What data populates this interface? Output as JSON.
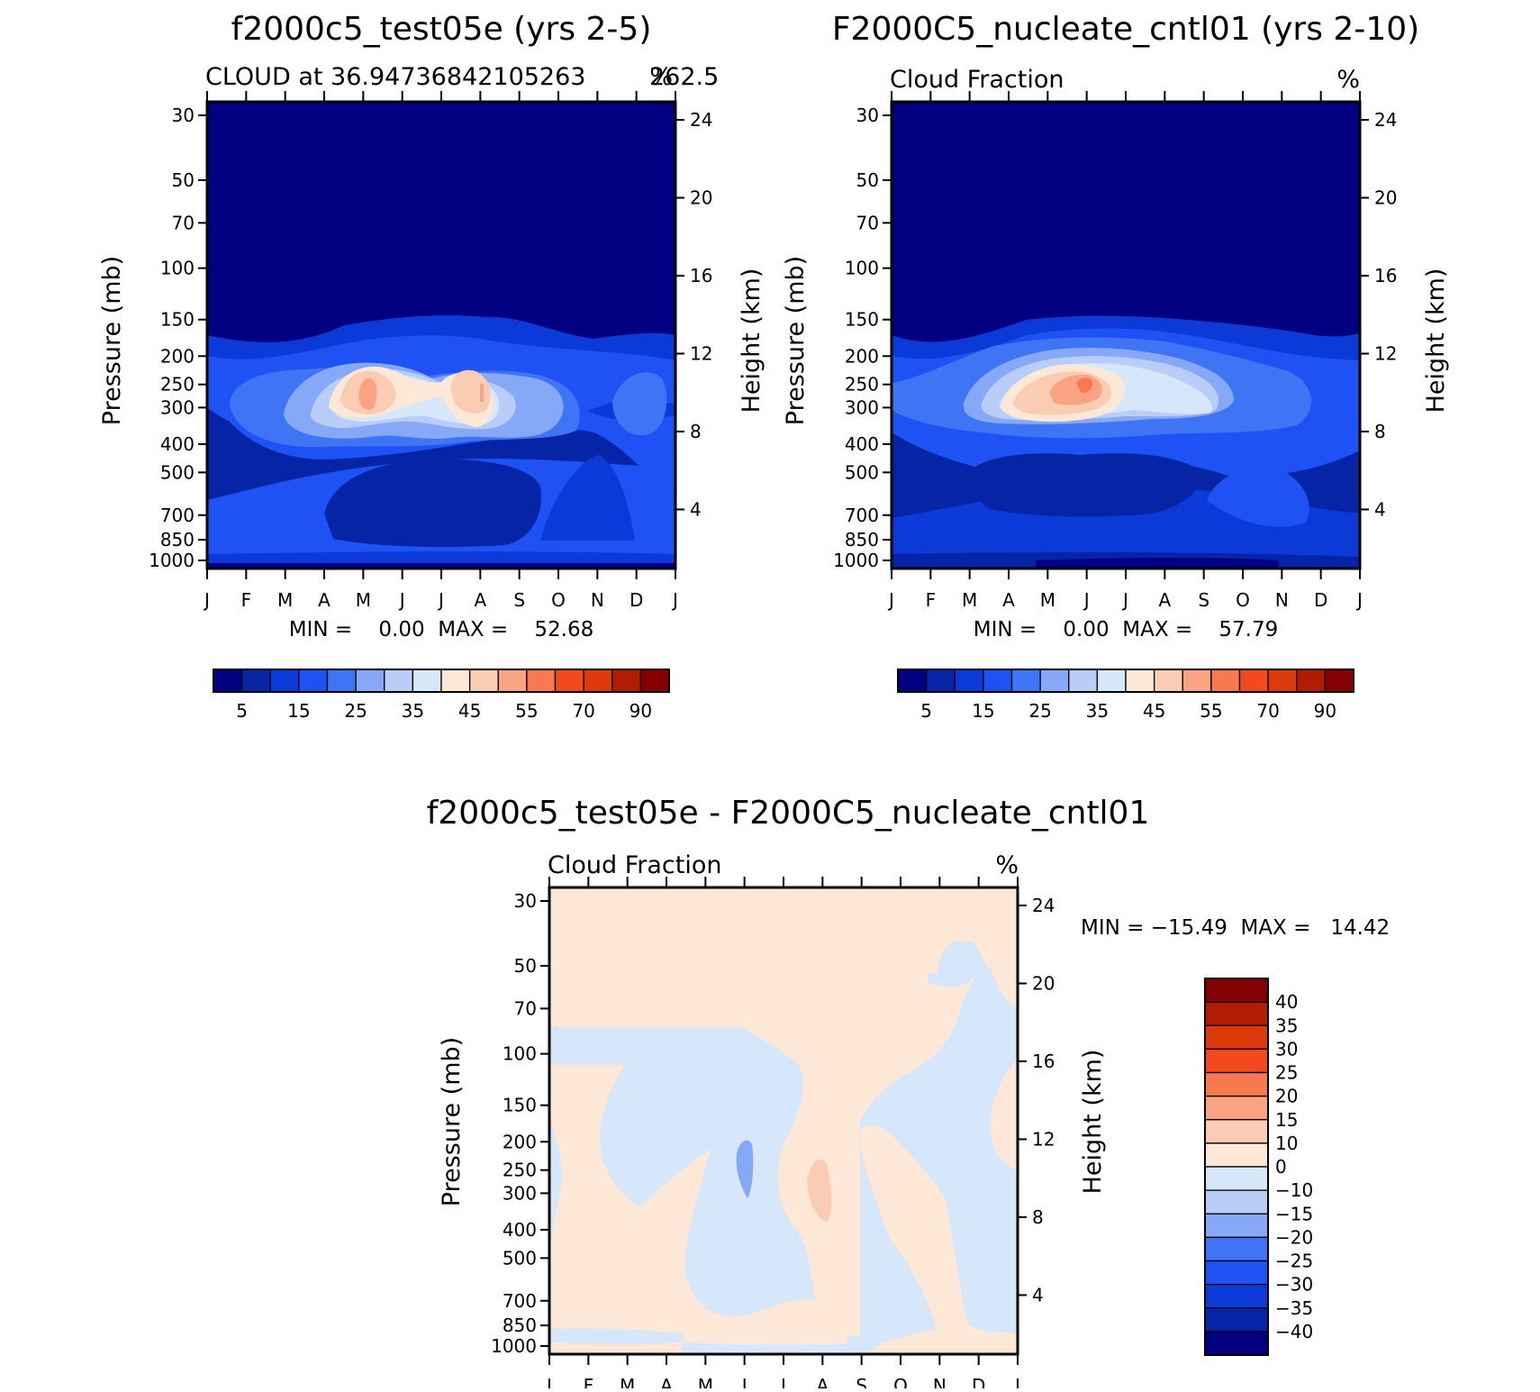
{
  "chart_data": [
    {
      "type": "contour",
      "title": "f2000c5_test05e (yrs 2-5)",
      "left_string": "CLOUD at 36.94736842105263",
      "right_string": "%",
      "center_string": "262.5",
      "ylabel": "Pressure (mb)",
      "y2label": "Height (km)",
      "x_ticks": [
        "J",
        "F",
        "M",
        "A",
        "M",
        "J",
        "J",
        "A",
        "S",
        "O",
        "N",
        "D",
        "J"
      ],
      "pressure_ticks": [
        "30",
        "50",
        "70",
        "100",
        "150",
        "200",
        "250",
        "300",
        "400",
        "500",
        "700",
        "850",
        "1000"
      ],
      "height_ticks": [
        "24",
        "20",
        "16",
        "12",
        "8",
        "4"
      ],
      "minmax_text": "MIN =    0.00  MAX =    52.68",
      "min": 0.0,
      "max": 52.68,
      "colorbar_labels": [
        "5",
        "15",
        "25",
        "35",
        "45",
        "55",
        "70",
        "90"
      ],
      "levels": [
        0,
        5,
        10,
        15,
        20,
        25,
        30,
        35,
        40,
        45,
        50,
        55,
        60,
        70,
        80,
        90
      ],
      "features": [
        {
          "kind": "cloud-maximum",
          "month": "M",
          "pressure_mb": 240,
          "value": 52.68
        },
        {
          "kind": "secondary-maximum",
          "month": "A",
          "pressure_mb": 240,
          "value": 47
        },
        {
          "kind": "stratosphere",
          "pressure_range_mb": [
            30,
            150
          ],
          "value": 0
        }
      ]
    },
    {
      "type": "contour",
      "title": "F2000C5_nucleate_cntl01 (yrs 2-10)",
      "left_string": "Cloud Fraction",
      "right_string": "%",
      "ylabel": "Pressure (mb)",
      "y2label": "Height (km)",
      "x_ticks": [
        "J",
        "F",
        "M",
        "A",
        "M",
        "J",
        "J",
        "A",
        "S",
        "O",
        "N",
        "D",
        "J"
      ],
      "pressure_ticks": [
        "30",
        "50",
        "70",
        "100",
        "150",
        "200",
        "250",
        "300",
        "400",
        "500",
        "700",
        "850",
        "1000"
      ],
      "height_ticks": [
        "24",
        "20",
        "16",
        "12",
        "8",
        "4"
      ],
      "minmax_text": "MIN =    0.00  MAX =    57.79",
      "min": 0.0,
      "max": 57.79,
      "colorbar_labels": [
        "5",
        "15",
        "25",
        "35",
        "45",
        "55",
        "70",
        "90"
      ],
      "levels": [
        0,
        5,
        10,
        15,
        20,
        25,
        30,
        35,
        40,
        45,
        50,
        55,
        60,
        70,
        80,
        90
      ],
      "features": [
        {
          "kind": "cloud-maximum",
          "month": "J",
          "pressure_mb": 240,
          "value": 57.79
        },
        {
          "kind": "stratosphere",
          "pressure_range_mb": [
            30,
            150
          ],
          "value": 0
        }
      ]
    },
    {
      "type": "contour",
      "title": "f2000c5_test05e - F2000C5_nucleate_cntl01",
      "left_string": "Cloud Fraction",
      "right_string": "%",
      "ylabel": "Pressure (mb)",
      "y2label": "Height (km)",
      "x_ticks": [
        "J",
        "F",
        "M",
        "A",
        "M",
        "J",
        "J",
        "A",
        "S",
        "O",
        "N",
        "D",
        "J"
      ],
      "pressure_ticks": [
        "30",
        "50",
        "70",
        "100",
        "150",
        "200",
        "250",
        "300",
        "400",
        "500",
        "700",
        "850",
        "1000"
      ],
      "height_ticks": [
        "24",
        "20",
        "16",
        "12",
        "8",
        "4"
      ],
      "minmax_text": "MIN = −15.49  MAX =   14.42",
      "min": -15.49,
      "max": 14.42,
      "colorbar_labels": [
        "40",
        "35",
        "30",
        "25",
        "20",
        "15",
        "10",
        "0",
        "−10",
        "−15",
        "−20",
        "−25",
        "−30",
        "−35",
        "−40"
      ],
      "levels": [
        -40,
        -35,
        -30,
        -25,
        -20,
        -15,
        -10,
        0,
        10,
        15,
        20,
        25,
        30,
        35,
        40
      ],
      "features": [
        {
          "kind": "positive-maximum",
          "month": "A",
          "pressure_mb": 260,
          "value": 14.42
        },
        {
          "kind": "negative-minimum",
          "month": "J",
          "pressure_mb": 240,
          "value": -15.49
        }
      ]
    }
  ],
  "colors": {
    "seq": [
      "#000080",
      "#0524a6",
      "#0c3ad8",
      "#1e52f5",
      "#3f74f4",
      "#86a8f7",
      "#b9cdf9",
      "#d6e6fb",
      "#fde8d8",
      "#fbccb4",
      "#f9a383",
      "#f8784f",
      "#f4491f",
      "#dc3a0a",
      "#b21b04",
      "#840000"
    ],
    "div": [
      "#840000",
      "#b21b04",
      "#dc3a0a",
      "#f4491f",
      "#f8784f",
      "#f9a383",
      "#fbccb4",
      "#fde8d8",
      "#d6e6fb",
      "#b9cdf9",
      "#86a8f7",
      "#3f74f4",
      "#1e52f5",
      "#0c3ad8",
      "#0524a6",
      "#000080"
    ]
  }
}
